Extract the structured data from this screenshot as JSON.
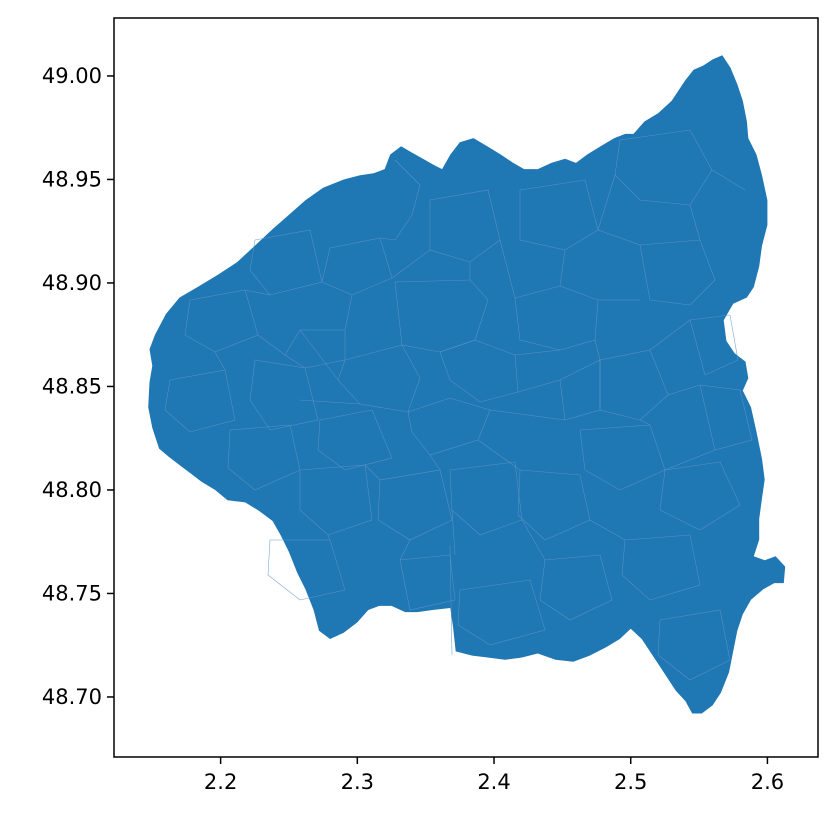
{
  "chart_data": {
    "type": "map",
    "title": "",
    "xlabel": "",
    "ylabel": "",
    "xlim": [
      2.122,
      2.637
    ],
    "ylim": [
      48.671,
      49.028
    ],
    "xticks": [
      2.2,
      2.3,
      2.4,
      2.5,
      2.6
    ],
    "xtick_labels": [
      "2.2",
      "2.3",
      "2.4",
      "2.5",
      "2.6"
    ],
    "yticks": [
      48.7,
      48.75,
      48.8,
      48.85,
      48.9,
      48.95,
      49.0
    ],
    "ytick_labels": [
      "48.70",
      "48.75",
      "48.80",
      "48.85",
      "48.90",
      "48.95",
      "49.00"
    ],
    "grid": false,
    "legend": "none",
    "fill_color": "#1f77b4",
    "boundary_color": "#5f95c8",
    "outline": [
      [
        2.148,
        48.868
      ],
      [
        2.152,
        48.875
      ],
      [
        2.16,
        48.885
      ],
      [
        2.17,
        48.893
      ],
      [
        2.183,
        48.898
      ],
      [
        2.198,
        48.904
      ],
      [
        2.212,
        48.91
      ],
      [
        2.225,
        48.918
      ],
      [
        2.238,
        48.926
      ],
      [
        2.25,
        48.933
      ],
      [
        2.262,
        48.94
      ],
      [
        2.275,
        48.946
      ],
      [
        2.29,
        48.95
      ],
      [
        2.302,
        48.952
      ],
      [
        2.312,
        48.953
      ],
      [
        2.32,
        48.955
      ],
      [
        2.324,
        48.962
      ],
      [
        2.332,
        48.966
      ],
      [
        2.34,
        48.963
      ],
      [
        2.348,
        48.96
      ],
      [
        2.356,
        48.957
      ],
      [
        2.362,
        48.955
      ],
      [
        2.368,
        48.962
      ],
      [
        2.375,
        48.968
      ],
      [
        2.385,
        48.97
      ],
      [
        2.395,
        48.966
      ],
      [
        2.405,
        48.962
      ],
      [
        2.414,
        48.958
      ],
      [
        2.422,
        48.955
      ],
      [
        2.432,
        48.955
      ],
      [
        2.442,
        48.958
      ],
      [
        2.452,
        48.96
      ],
      [
        2.46,
        48.958
      ],
      [
        2.468,
        48.962
      ],
      [
        2.478,
        48.966
      ],
      [
        2.488,
        48.97
      ],
      [
        2.496,
        48.972
      ],
      [
        2.502,
        48.972
      ],
      [
        2.51,
        48.978
      ],
      [
        2.52,
        48.982
      ],
      [
        2.53,
        48.988
      ],
      [
        2.536,
        48.994
      ],
      [
        2.54,
        48.998
      ],
      [
        2.546,
        49.003
      ],
      [
        2.553,
        49.005
      ],
      [
        2.56,
        49.008
      ],
      [
        2.567,
        49.01
      ],
      [
        2.573,
        49.004
      ],
      [
        2.578,
        48.996
      ],
      [
        2.582,
        48.988
      ],
      [
        2.585,
        48.978
      ],
      [
        2.586,
        48.97
      ],
      [
        2.592,
        48.962
      ],
      [
        2.596,
        48.952
      ],
      [
        2.6,
        48.94
      ],
      [
        2.6,
        48.928
      ],
      [
        2.596,
        48.918
      ],
      [
        2.594,
        48.908
      ],
      [
        2.59,
        48.898
      ],
      [
        2.585,
        48.893
      ],
      [
        2.575,
        48.89
      ],
      [
        2.568,
        48.882
      ],
      [
        2.57,
        48.872
      ],
      [
        2.576,
        48.866
      ],
      [
        2.584,
        48.862
      ],
      [
        2.586,
        48.854
      ],
      [
        2.582,
        48.848
      ],
      [
        2.588,
        48.84
      ],
      [
        2.592,
        48.828
      ],
      [
        2.596,
        48.815
      ],
      [
        2.598,
        48.805
      ],
      [
        2.596,
        48.796
      ],
      [
        2.594,
        48.786
      ],
      [
        2.594,
        48.776
      ],
      [
        2.59,
        48.768
      ],
      [
        2.598,
        48.766
      ],
      [
        2.606,
        48.768
      ],
      [
        2.613,
        48.763
      ],
      [
        2.612,
        48.755
      ],
      [
        2.605,
        48.755
      ],
      [
        2.597,
        48.752
      ],
      [
        2.588,
        48.747
      ],
      [
        2.582,
        48.74
      ],
      [
        2.578,
        48.732
      ],
      [
        2.575,
        48.722
      ],
      [
        2.572,
        48.712
      ],
      [
        2.566,
        48.702
      ],
      [
        2.56,
        48.696
      ],
      [
        2.552,
        48.692
      ],
      [
        2.545,
        48.692
      ],
      [
        2.54,
        48.698
      ],
      [
        2.533,
        48.703
      ],
      [
        2.526,
        48.71
      ],
      [
        2.52,
        48.716
      ],
      [
        2.514,
        48.722
      ],
      [
        2.508,
        48.728
      ],
      [
        2.5,
        48.733
      ],
      [
        2.492,
        48.728
      ],
      [
        2.482,
        48.724
      ],
      [
        2.47,
        48.72
      ],
      [
        2.458,
        48.717
      ],
      [
        2.445,
        48.718
      ],
      [
        2.432,
        48.721
      ],
      [
        2.42,
        48.719
      ],
      [
        2.408,
        48.718
      ],
      [
        2.396,
        48.719
      ],
      [
        2.384,
        48.72
      ],
      [
        2.372,
        48.722
      ],
      [
        2.37,
        48.734
      ],
      [
        2.368,
        48.743
      ],
      [
        2.355,
        48.742
      ],
      [
        2.344,
        48.741
      ],
      [
        2.335,
        48.741
      ],
      [
        2.325,
        48.744
      ],
      [
        2.316,
        48.744
      ],
      [
        2.308,
        48.742
      ],
      [
        2.3,
        48.736
      ],
      [
        2.29,
        48.731
      ],
      [
        2.28,
        48.728
      ],
      [
        2.272,
        48.732
      ],
      [
        2.268,
        48.742
      ],
      [
        2.262,
        48.752
      ],
      [
        2.256,
        48.76
      ],
      [
        2.25,
        48.77
      ],
      [
        2.244,
        48.778
      ],
      [
        2.238,
        48.785
      ],
      [
        2.228,
        48.79
      ],
      [
        2.218,
        48.794
      ],
      [
        2.205,
        48.795
      ],
      [
        2.196,
        48.8
      ],
      [
        2.186,
        48.804
      ],
      [
        2.178,
        48.808
      ],
      [
        2.17,
        48.812
      ],
      [
        2.162,
        48.816
      ],
      [
        2.155,
        48.82
      ],
      [
        2.15,
        48.83
      ],
      [
        2.147,
        48.84
      ],
      [
        2.148,
        48.852
      ],
      [
        2.15,
        48.86
      ]
    ]
  }
}
